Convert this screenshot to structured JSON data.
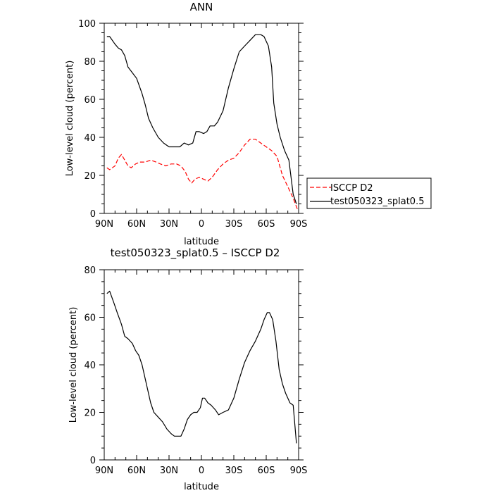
{
  "chart_data": [
    {
      "type": "line",
      "title": "ANN",
      "xlabel": "latitude",
      "ylabel": "Low-level cloud (percent)",
      "xlim": [
        90,
        -90
      ],
      "ylim": [
        0,
        100
      ],
      "x_ticks": [
        90,
        60,
        30,
        0,
        -30,
        -60,
        -90
      ],
      "x_tick_labels": [
        "90N",
        "60N",
        "30N",
        "0",
        "30S",
        "60S",
        "90S"
      ],
      "y_ticks": [
        0,
        20,
        40,
        60,
        80,
        100
      ],
      "y_tick_labels": [
        "0",
        "20",
        "40",
        "60",
        "80",
        "100"
      ],
      "legend": {
        "placement": "right",
        "entries": [
          "ISCCP D2",
          "test050323_splat0.5"
        ]
      },
      "series": [
        {
          "name": "ISCCP D2",
          "color": "#ff0000",
          "style": "dashed",
          "x": [
            87.5,
            85,
            80,
            77,
            74,
            71,
            68,
            65,
            61,
            57,
            52,
            47,
            42,
            38,
            33,
            28,
            23,
            19,
            15,
            12,
            9,
            6,
            2,
            -2,
            -6,
            -10,
            -15,
            -20,
            -25,
            -30,
            -35,
            -40,
            -45,
            -50,
            -55,
            -60,
            -65,
            -70,
            -75,
            -80,
            -85,
            -89
          ],
          "y": [
            24,
            23,
            25,
            29,
            31,
            28,
            25,
            24,
            26,
            27,
            27,
            28,
            27,
            26,
            25,
            26,
            26,
            25,
            22,
            18,
            16,
            18,
            19,
            18,
            17,
            19,
            23,
            26,
            28,
            29,
            32,
            36,
            39,
            39,
            37,
            35,
            33,
            30,
            20,
            14,
            8,
            2
          ]
        },
        {
          "name": "test050323_splat0.5",
          "color": "#000000",
          "style": "solid",
          "x": [
            87.5,
            85,
            80,
            77,
            74,
            71,
            68,
            64,
            60,
            55,
            52,
            49,
            45,
            40,
            35,
            30,
            25,
            20,
            16,
            12,
            8,
            5,
            2,
            -2,
            -5,
            -8,
            -12,
            -15,
            -20,
            -25,
            -30,
            -35,
            -40,
            -45,
            -50,
            -55,
            -58,
            -62,
            -65,
            -67,
            -70,
            -73,
            -77,
            -81,
            -85,
            -88
          ],
          "y": [
            93,
            93,
            89,
            87,
            86,
            83,
            77,
            74,
            71,
            63,
            57,
            50,
            45,
            40,
            37,
            35,
            35,
            35,
            37,
            36,
            37,
            43,
            43,
            42,
            43,
            46,
            46,
            48,
            54,
            66,
            76,
            85,
            88,
            91,
            94,
            94,
            93,
            88,
            77,
            58,
            47,
            40,
            33,
            28,
            10,
            5
          ]
        }
      ]
    },
    {
      "type": "line",
      "title": "test050323_splat0.5 – ISCCP D2",
      "xlabel": "latitude",
      "ylabel": "Low-level cloud (percent)",
      "xlim": [
        90,
        -90
      ],
      "ylim": [
        0,
        80
      ],
      "x_ticks": [
        90,
        60,
        30,
        0,
        -30,
        -60,
        -90
      ],
      "x_tick_labels": [
        "90N",
        "60N",
        "30N",
        "0",
        "30S",
        "60S",
        "90S"
      ],
      "y_ticks": [
        0,
        20,
        40,
        60,
        80
      ],
      "y_tick_labels": [
        "0",
        "20",
        "40",
        "60",
        "80"
      ],
      "series": [
        {
          "color": "#000000",
          "style": "solid",
          "x": [
            87.5,
            85,
            81,
            78,
            74,
            71,
            68,
            64,
            61,
            58,
            55,
            51,
            47,
            44,
            40,
            36,
            32,
            28,
            25,
            22,
            19,
            16,
            13,
            10,
            7,
            4,
            1,
            -1,
            -3,
            -6,
            -9,
            -13,
            -16,
            -20,
            -25,
            -30,
            -35,
            -40,
            -45,
            -50,
            -55,
            -58,
            -61,
            -63,
            -66,
            -69,
            -72,
            -75,
            -78,
            -82,
            -85,
            -88
          ],
          "y": [
            70,
            71,
            66,
            62,
            57,
            52,
            51,
            49,
            46,
            44,
            40,
            32,
            24,
            20,
            18,
            16,
            13,
            11,
            10,
            10,
            10,
            13,
            17,
            19,
            20,
            20,
            22,
            26,
            26,
            24,
            23,
            21,
            19,
            20,
            21,
            26,
            34,
            41,
            46,
            50,
            55,
            59,
            62,
            62,
            59,
            50,
            38,
            32,
            28,
            24,
            23,
            7
          ]
        }
      ]
    }
  ]
}
